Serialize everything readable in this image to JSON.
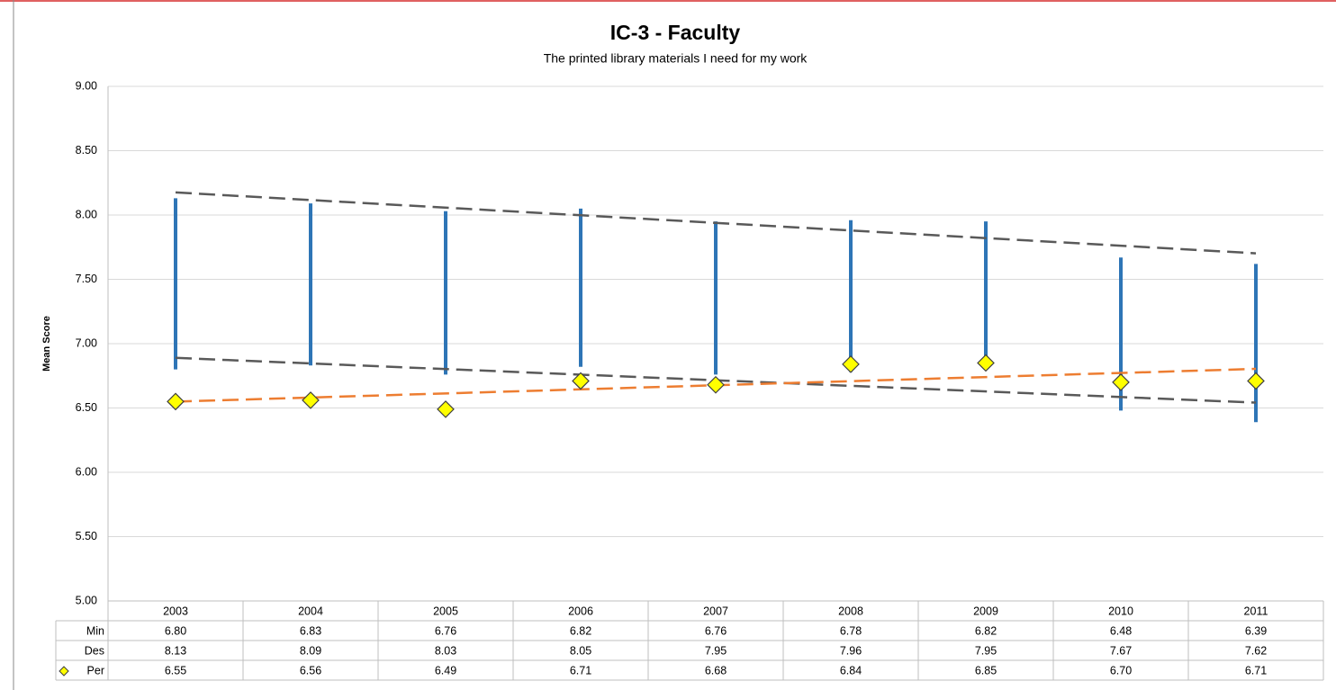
{
  "chart_data": {
    "type": "line",
    "title": "IC-3 - Faculty",
    "subtitle": "The printed library materials I need for my work",
    "y_label": "Mean Score",
    "categories": [
      "2003",
      "2004",
      "2005",
      "2006",
      "2007",
      "2008",
      "2009",
      "2010",
      "2011"
    ],
    "ylim": [
      5,
      9
    ],
    "yticks": [
      {
        "value": 5,
        "label": "5.00"
      },
      {
        "value": 5.5,
        "label": "5.50"
      },
      {
        "value": 6,
        "label": "6.00"
      },
      {
        "value": 6.5,
        "label": "6.50"
      },
      {
        "value": 7,
        "label": "7.00"
      },
      {
        "value": 7.5,
        "label": "7.50"
      },
      {
        "value": 8,
        "label": "8.00"
      },
      {
        "value": 8.5,
        "label": "8.50"
      },
      {
        "value": 9,
        "label": "9.00"
      }
    ],
    "grid": true,
    "hilo_color": "#2e75b6",
    "series": [
      {
        "name": "Min",
        "color": "#2e75b6",
        "trendline": "#595959",
        "values": [
          6.8,
          6.83,
          6.76,
          6.82,
          6.76,
          6.78,
          6.82,
          6.48,
          6.39
        ],
        "value_labels": [
          "6.80",
          "6.83",
          "6.76",
          "6.82",
          "6.76",
          "6.78",
          "6.82",
          "6.48",
          "6.39"
        ]
      },
      {
        "name": "Des",
        "color": "#2e75b6",
        "trendline": "#595959",
        "values": [
          8.13,
          8.09,
          8.03,
          8.05,
          7.95,
          7.96,
          7.95,
          7.67,
          7.62
        ],
        "value_labels": [
          "8.13",
          "8.09",
          "8.03",
          "8.05",
          "7.95",
          "7.96",
          "7.95",
          "7.67",
          "7.62"
        ]
      },
      {
        "name": "Per",
        "color": "#ffff00",
        "marker": "diamond",
        "trendline": "#ed7d31",
        "values": [
          6.55,
          6.56,
          6.49,
          6.71,
          6.68,
          6.84,
          6.85,
          6.7,
          6.71
        ],
        "value_labels": [
          "6.55",
          "6.56",
          "6.49",
          "6.71",
          "6.68",
          "6.84",
          "6.85",
          "6.70",
          "6.71"
        ]
      }
    ]
  }
}
